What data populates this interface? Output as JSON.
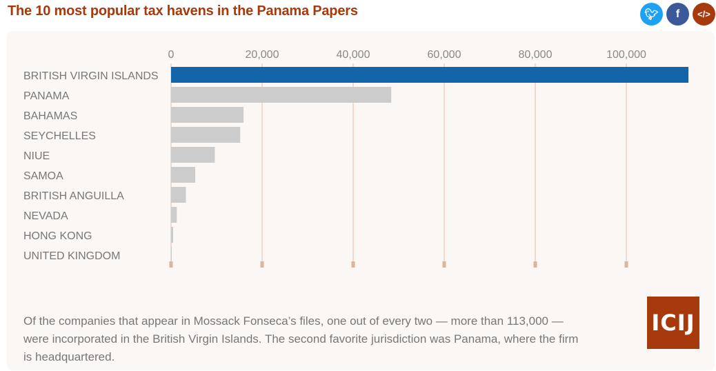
{
  "title": "The 10 most popular tax havens in the Panama Papers",
  "share": {
    "twitter": "twitter-icon",
    "facebook": "facebook-icon",
    "embed": "embed-code-icon",
    "twitter_color": "#1da1f2",
    "facebook_color": "#3b5998",
    "embed_color": "#a63a0c"
  },
  "chart_data": {
    "type": "bar",
    "orientation": "horizontal",
    "categories": [
      "BRITISH VIRGIN ISLANDS",
      "PANAMA",
      "BAHAMAS",
      "SEYCHELLES",
      "NIUE",
      "SAMOA",
      "BRITISH ANGUILLA",
      "NEVADA",
      "HONG KONG",
      "UNITED KINGDOM"
    ],
    "values": [
      113648,
      48360,
      15915,
      15182,
      9611,
      5307,
      3253,
      1260,
      452,
      148
    ],
    "xlim": [
      0,
      113648
    ],
    "ticks": [
      0,
      20000,
      40000,
      60000,
      80000,
      100000
    ],
    "tick_labels": [
      "0",
      "20,000",
      "40,000",
      "60,000",
      "80,000",
      "100,000"
    ],
    "axis_position": "top",
    "grid": true,
    "highlight_color": "#1265a8",
    "bar_color": "#cccccc",
    "grid_color": "#efd2c2"
  },
  "caption": "Of the companies that appear in Mossack Fonseca’s files, one out of every two — more than 113,000 — were incorporated in the British Virgin Islands. The second favorite jurisdiction was Panama, where the firm is headquartered.",
  "logo": "ICIJ"
}
